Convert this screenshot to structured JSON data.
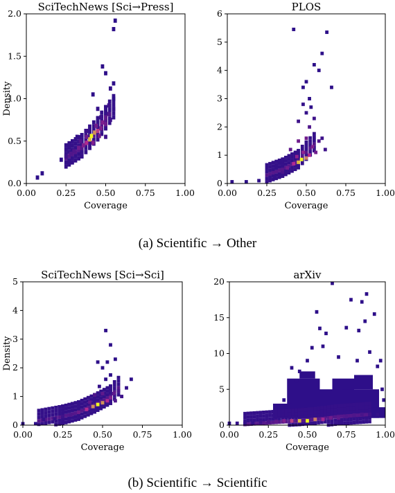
{
  "captions": {
    "a": "(a) Scientific → Other",
    "b": "(b) Scientific → Scientific"
  },
  "colors": {
    "colormap": "plasma",
    "low": "#0d0887",
    "mid": "#b12a90",
    "high": "#f0f921",
    "axes": "#000000"
  },
  "chart_data": [
    {
      "type": "heatmap",
      "panel": "top-left",
      "title": "SciTechNews [Sci→Press]",
      "xlabel": "Coverage",
      "ylabel": "Density",
      "xlim": [
        0,
        1
      ],
      "ylim": [
        0,
        2
      ],
      "xticks": [
        "0.00",
        "0.25",
        "0.50",
        "0.75",
        "1.00"
      ],
      "yticks": [
        "0.0",
        "0.5",
        "1.0",
        "1.5",
        "2.0"
      ],
      "bin": [
        0.021,
        0.05
      ],
      "trend": [
        [
          0.25,
          0.3
        ],
        [
          0.35,
          0.42
        ],
        [
          0.4,
          0.52
        ],
        [
          0.45,
          0.62
        ],
        [
          0.5,
          0.75
        ],
        [
          0.55,
          0.88
        ]
      ],
      "cells": [
        [
          0.07,
          0.07,
          0.1
        ],
        [
          0.1,
          0.12,
          0.1
        ],
        [
          0.22,
          0.28,
          0.1
        ],
        [
          0.25,
          0.32,
          0.15
        ],
        [
          0.28,
          0.35,
          0.2
        ],
        [
          0.3,
          0.38,
          0.2
        ],
        [
          0.33,
          0.42,
          0.3
        ],
        [
          0.34,
          0.5,
          0.2
        ],
        [
          0.36,
          0.45,
          0.35
        ],
        [
          0.38,
          0.48,
          0.5
        ],
        [
          0.38,
          0.55,
          0.3
        ],
        [
          0.4,
          0.52,
          0.85
        ],
        [
          0.41,
          0.56,
          1.0
        ],
        [
          0.43,
          0.6,
          0.75
        ],
        [
          0.42,
          0.48,
          0.35
        ],
        [
          0.45,
          0.62,
          0.55
        ],
        [
          0.44,
          0.68,
          0.3
        ],
        [
          0.46,
          0.56,
          0.3
        ],
        [
          0.47,
          0.65,
          0.35
        ],
        [
          0.48,
          0.72,
          0.35
        ],
        [
          0.5,
          0.7,
          0.3
        ],
        [
          0.5,
          0.78,
          0.25
        ],
        [
          0.52,
          0.82,
          0.2
        ],
        [
          0.53,
          0.75,
          0.15
        ],
        [
          0.47,
          0.78,
          0.15
        ],
        [
          0.5,
          0.55,
          0.15
        ],
        [
          0.45,
          0.88,
          0.12
        ],
        [
          0.52,
          0.92,
          0.15
        ],
        [
          0.55,
          0.88,
          0.12
        ],
        [
          0.55,
          1.0,
          0.1
        ],
        [
          0.42,
          1.05,
          0.1
        ],
        [
          0.48,
          1.38,
          0.1
        ],
        [
          0.5,
          1.3,
          0.1
        ],
        [
          0.55,
          1.82,
          0.1
        ],
        [
          0.56,
          1.92,
          0.1
        ],
        [
          0.55,
          1.18,
          0.1
        ],
        [
          0.53,
          1.12,
          0.12
        ],
        [
          0.32,
          0.55,
          0.12
        ],
        [
          0.38,
          0.62,
          0.15
        ]
      ]
    },
    {
      "type": "heatmap",
      "panel": "top-right",
      "title": "PLOS",
      "xlabel": "Coverage",
      "ylabel": "",
      "xlim": [
        0,
        1
      ],
      "ylim": [
        0,
        6
      ],
      "xticks": [
        "0.00",
        "0.25",
        "0.50",
        "0.75",
        "1.00"
      ],
      "yticks": [
        "0",
        "1",
        "2",
        "3",
        "4",
        "5",
        "6"
      ],
      "bin": [
        0.021,
        0.12
      ],
      "trend": [
        [
          0.25,
          0.3
        ],
        [
          0.35,
          0.5
        ],
        [
          0.45,
          0.8
        ],
        [
          0.5,
          1.1
        ],
        [
          0.55,
          1.4
        ]
      ],
      "cells": [
        [
          0.03,
          0.06,
          0.1
        ],
        [
          0.12,
          0.06,
          0.1
        ],
        [
          0.2,
          0.1,
          0.1
        ],
        [
          0.3,
          0.25,
          0.12
        ],
        [
          0.35,
          0.4,
          0.18
        ],
        [
          0.38,
          0.55,
          0.3
        ],
        [
          0.42,
          0.7,
          0.5
        ],
        [
          0.45,
          0.75,
          0.85
        ],
        [
          0.47,
          0.85,
          1.0
        ],
        [
          0.5,
          0.9,
          0.7
        ],
        [
          0.52,
          1.0,
          0.5
        ],
        [
          0.48,
          1.1,
          0.4
        ],
        [
          0.54,
          1.3,
          0.35
        ],
        [
          0.44,
          0.95,
          0.4
        ],
        [
          0.56,
          1.1,
          0.3
        ],
        [
          0.5,
          1.6,
          0.3
        ],
        [
          0.52,
          2.0,
          0.2
        ],
        [
          0.55,
          2.3,
          0.15
        ],
        [
          0.5,
          2.5,
          0.12
        ],
        [
          0.45,
          1.5,
          0.3
        ],
        [
          0.4,
          1.2,
          0.25
        ],
        [
          0.58,
          1.5,
          0.2
        ],
        [
          0.6,
          1.6,
          0.15
        ],
        [
          0.48,
          2.8,
          0.12
        ],
        [
          0.52,
          3.0,
          0.1
        ],
        [
          0.42,
          5.45,
          0.1
        ],
        [
          0.63,
          5.35,
          0.1
        ],
        [
          0.55,
          4.2,
          0.1
        ],
        [
          0.58,
          4.0,
          0.1
        ],
        [
          0.6,
          4.6,
          0.1
        ],
        [
          0.66,
          3.4,
          0.1
        ],
        [
          0.48,
          3.4,
          0.1
        ],
        [
          0.45,
          2.2,
          0.15
        ],
        [
          0.62,
          1.2,
          0.15
        ],
        [
          0.5,
          3.6,
          0.1
        ],
        [
          0.53,
          2.7,
          0.1
        ]
      ]
    },
    {
      "type": "heatmap",
      "panel": "bottom-left",
      "title": "SciTechNews [Sci→Sci]",
      "xlabel": "Coverage",
      "ylabel": "Density",
      "xlim": [
        0,
        1
      ],
      "ylim": [
        0,
        5
      ],
      "xticks": [
        "0.00",
        "0.25",
        "0.50",
        "0.75",
        "1.00"
      ],
      "yticks": [
        "0",
        "1",
        "2",
        "3",
        "4",
        "5"
      ],
      "bin": [
        0.021,
        0.12
      ],
      "trend": [
        [
          0.1,
          0.15
        ],
        [
          0.25,
          0.3
        ],
        [
          0.35,
          0.45
        ],
        [
          0.45,
          0.7
        ],
        [
          0.55,
          1.0
        ],
        [
          0.6,
          1.3
        ]
      ],
      "cells": [
        [
          0.0,
          0.05,
          0.1
        ],
        [
          0.08,
          0.05,
          0.1
        ],
        [
          0.13,
          0.2,
          0.12
        ],
        [
          0.2,
          0.22,
          0.12
        ],
        [
          0.25,
          0.3,
          0.15
        ],
        [
          0.3,
          0.35,
          0.2
        ],
        [
          0.35,
          0.45,
          0.3
        ],
        [
          0.4,
          0.55,
          0.5
        ],
        [
          0.44,
          0.65,
          0.75
        ],
        [
          0.47,
          0.72,
          1.0
        ],
        [
          0.5,
          0.78,
          0.75
        ],
        [
          0.53,
          0.85,
          0.5
        ],
        [
          0.55,
          0.95,
          0.35
        ],
        [
          0.5,
          1.1,
          0.25
        ],
        [
          0.57,
          1.1,
          0.25
        ],
        [
          0.6,
          1.2,
          0.18
        ],
        [
          0.62,
          1.0,
          0.15
        ],
        [
          0.48,
          1.35,
          0.12
        ],
        [
          0.52,
          1.6,
          0.1
        ],
        [
          0.55,
          1.75,
          0.1
        ],
        [
          0.45,
          1.05,
          0.2
        ],
        [
          0.42,
          0.8,
          0.25
        ],
        [
          0.58,
          0.85,
          0.2
        ],
        [
          0.52,
          3.3,
          0.1
        ],
        [
          0.53,
          2.2,
          0.1
        ],
        [
          0.55,
          2.8,
          0.1
        ],
        [
          0.47,
          2.2,
          0.1
        ],
        [
          0.58,
          2.3,
          0.1
        ],
        [
          0.68,
          1.6,
          0.1
        ],
        [
          0.65,
          1.3,
          0.12
        ],
        [
          0.5,
          2.0,
          0.1
        ]
      ]
    },
    {
      "type": "heatmap",
      "panel": "bottom-right",
      "title": "arXiv",
      "xlabel": "Coverage",
      "ylabel": "",
      "xlim": [
        0,
        1
      ],
      "ylim": [
        0,
        20
      ],
      "xticks": [
        "0.00",
        "0.25",
        "0.50",
        "0.75",
        "1.00"
      ],
      "yticks": [
        "0",
        "5",
        "10",
        "15",
        "20"
      ],
      "bin": [
        0.021,
        0.5
      ],
      "trend": [
        [
          0.1,
          0.1
        ],
        [
          0.3,
          0.4
        ],
        [
          0.45,
          0.6
        ],
        [
          0.55,
          0.8
        ],
        [
          0.7,
          1.2
        ],
        [
          0.9,
          1.5
        ]
      ],
      "cells": [
        [
          0.0,
          0.25,
          0.1
        ],
        [
          0.05,
          0.25,
          0.12
        ],
        [
          0.1,
          0.25,
          0.12
        ],
        [
          0.15,
          0.25,
          0.12
        ],
        [
          0.2,
          0.4,
          0.15
        ],
        [
          0.25,
          0.5,
          0.18
        ],
        [
          0.3,
          0.5,
          0.25
        ],
        [
          0.35,
          0.6,
          0.35
        ],
        [
          0.4,
          0.6,
          0.55
        ],
        [
          0.45,
          0.6,
          0.85
        ],
        [
          0.5,
          0.6,
          1.0
        ],
        [
          0.55,
          0.8,
          0.7
        ],
        [
          0.6,
          0.8,
          0.45
        ],
        [
          0.65,
          1.0,
          0.3
        ],
        [
          0.7,
          1.0,
          0.25
        ],
        [
          0.75,
          1.2,
          0.2
        ],
        [
          0.8,
          1.4,
          0.2
        ],
        [
          0.85,
          1.5,
          0.18
        ],
        [
          0.9,
          1.5,
          0.15
        ],
        [
          0.95,
          1.5,
          0.12
        ],
        [
          0.66,
          19.8,
          0.1
        ],
        [
          0.88,
          18.3,
          0.1
        ],
        [
          0.85,
          17.2,
          0.1
        ],
        [
          0.78,
          17.5,
          0.1
        ],
        [
          0.93,
          15.5,
          0.1
        ],
        [
          0.56,
          15.8,
          0.1
        ],
        [
          0.58,
          13.5,
          0.1
        ],
        [
          0.62,
          12.8,
          0.1
        ],
        [
          0.75,
          13.6,
          0.1
        ],
        [
          0.83,
          13.2,
          0.1
        ],
        [
          0.87,
          14.5,
          0.1
        ],
        [
          0.53,
          10.8,
          0.1
        ],
        [
          0.6,
          11.0,
          0.1
        ],
        [
          0.7,
          9.5,
          0.1
        ],
        [
          0.9,
          10.2,
          0.1
        ],
        [
          0.95,
          8.2,
          0.1
        ],
        [
          0.4,
          8.0,
          0.1
        ],
        [
          0.45,
          7.5,
          0.1
        ],
        [
          0.5,
          9.0,
          0.1
        ],
        [
          0.82,
          9.0,
          0.1
        ],
        [
          0.97,
          9.0,
          0.1
        ],
        [
          0.3,
          2.5,
          0.1
        ],
        [
          0.35,
          3.5,
          0.1
        ],
        [
          0.43,
          6.2,
          0.1
        ],
        [
          0.98,
          5.0,
          0.1
        ],
        [
          0.99,
          3.5,
          0.1
        ]
      ],
      "blocks": [
        [
          0.37,
          0.58,
          1.0,
          6.5
        ],
        [
          0.45,
          0.55,
          6.5,
          7.5
        ],
        [
          0.66,
          0.8,
          1.0,
          6.5
        ],
        [
          0.72,
          0.96,
          1.0,
          5.0
        ],
        [
          0.58,
          0.7,
          1.0,
          5.0
        ],
        [
          0.28,
          0.4,
          1.0,
          3.0
        ],
        [
          0.8,
          0.92,
          5.0,
          7.0
        ],
        [
          0.9,
          1.0,
          1.0,
          2.5
        ]
      ]
    }
  ]
}
